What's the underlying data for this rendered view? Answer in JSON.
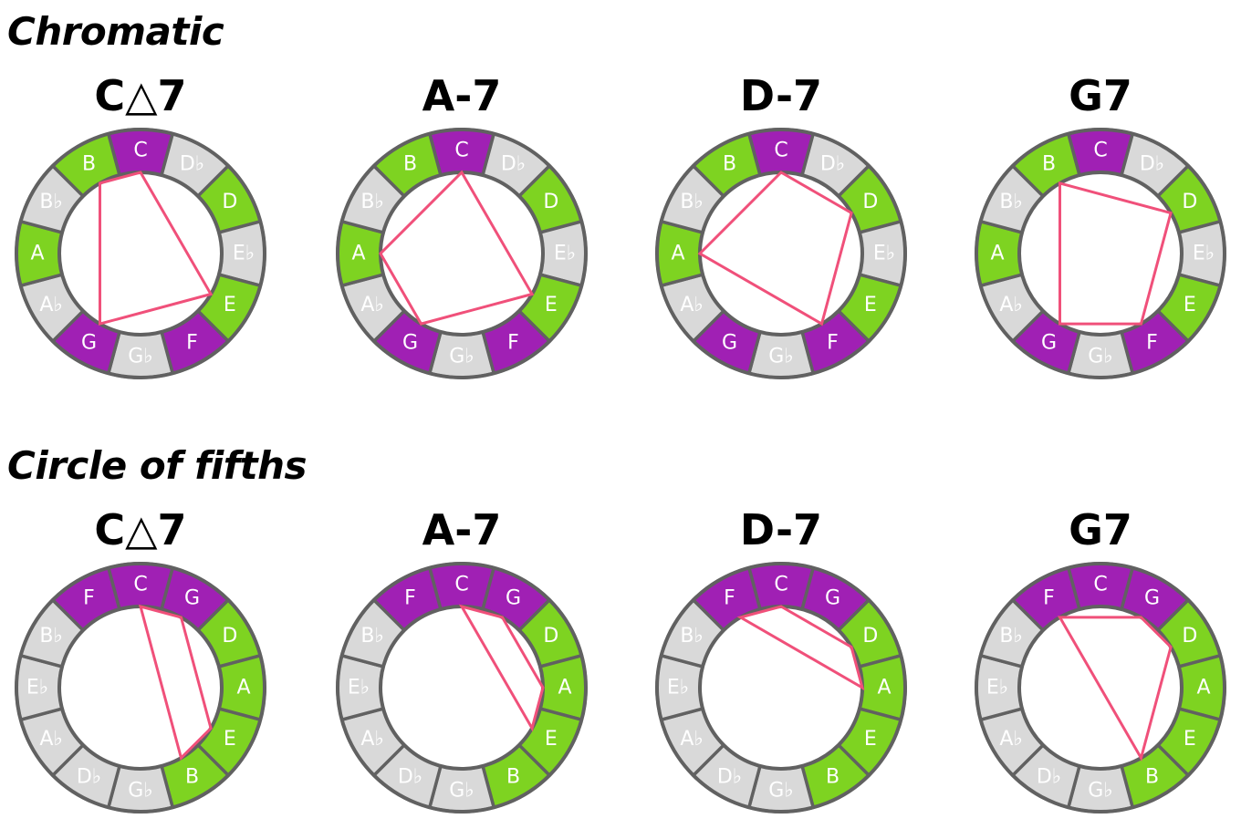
{
  "colors": {
    "root": "#a020b4",
    "chord_tone": "#7ed321",
    "other": "#d9d9d9",
    "stroke": "#616161",
    "polygon": "#f0507a",
    "label": "#ffffff"
  },
  "sections": [
    {
      "title": "Chromatic",
      "notes": [
        "C",
        "D♭",
        "D",
        "E♭",
        "E",
        "F",
        "G♭",
        "G",
        "A♭",
        "A",
        "B♭",
        "B"
      ],
      "fill_roles": [
        "root",
        "other",
        "chord_tone",
        "other",
        "chord_tone",
        "root",
        "other",
        "root",
        "other",
        "chord_tone",
        "other",
        "chord_tone"
      ],
      "chords": [
        {
          "name": "C△7",
          "tones": [
            "C",
            "E",
            "G",
            "B"
          ]
        },
        {
          "name": "A-7",
          "tones": [
            "A",
            "C",
            "E",
            "G"
          ]
        },
        {
          "name": "D-7",
          "tones": [
            "D",
            "F",
            "A",
            "C"
          ]
        },
        {
          "name": "G7",
          "tones": [
            "G",
            "B",
            "D",
            "F"
          ]
        }
      ]
    },
    {
      "title": "Circle of fifths",
      "notes": [
        "C",
        "G",
        "D",
        "A",
        "E",
        "B",
        "G♭",
        "D♭",
        "A♭",
        "E♭",
        "B♭",
        "F"
      ],
      "fill_roles": [
        "root",
        "root",
        "chord_tone",
        "chord_tone",
        "chord_tone",
        "chord_tone",
        "other",
        "other",
        "other",
        "other",
        "other",
        "root"
      ],
      "chords": [
        {
          "name": "C△7",
          "tones": [
            "C",
            "G",
            "E",
            "B"
          ]
        },
        {
          "name": "A-7",
          "tones": [
            "A",
            "C",
            "E",
            "G"
          ]
        },
        {
          "name": "D-7",
          "tones": [
            "D",
            "F",
            "A",
            "C"
          ]
        },
        {
          "name": "G7",
          "tones": [
            "G",
            "B",
            "D",
            "F"
          ]
        }
      ]
    }
  ]
}
